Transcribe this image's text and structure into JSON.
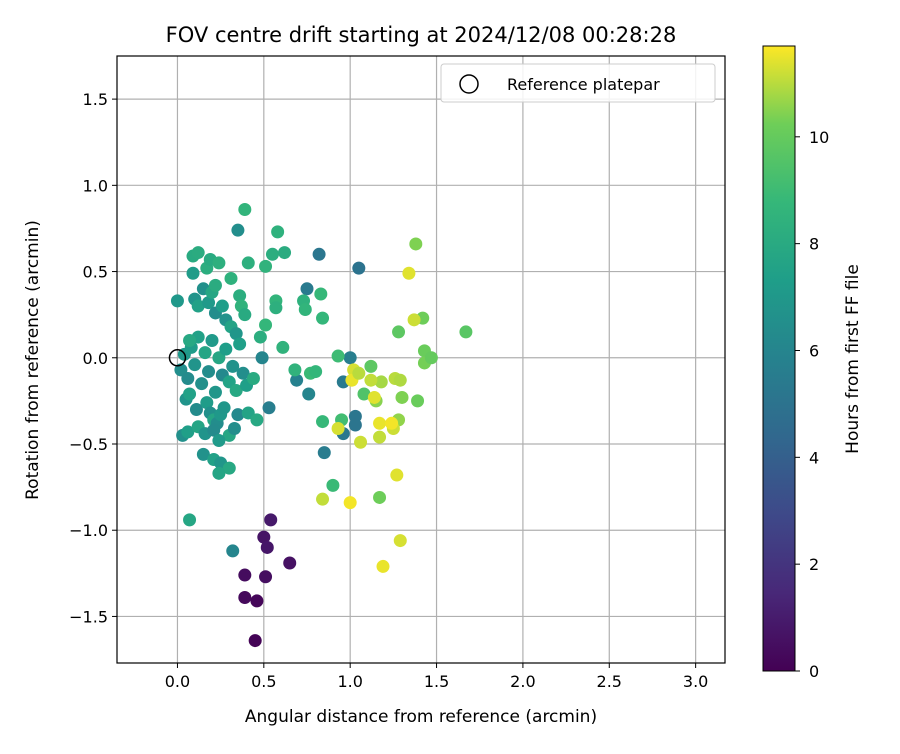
{
  "chart_data": {
    "type": "scatter",
    "title": "FOV centre drift starting at 2024/12/08 00:28:28",
    "xlabel": "Angular distance from reference (arcmin)",
    "ylabel": "Rotation from reference (arcmin)",
    "xlim": [
      -0.35,
      3.17
    ],
    "ylim": [
      -1.77,
      1.75
    ],
    "xticks": [
      0.0,
      0.5,
      1.0,
      1.5,
      2.0,
      2.5,
      3.0
    ],
    "xtick_labels": [
      "0.0",
      "0.5",
      "1.0",
      "1.5",
      "2.0",
      "2.5",
      "3.0"
    ],
    "yticks": [
      -1.5,
      -1.0,
      -0.5,
      0.0,
      0.5,
      1.0,
      1.5
    ],
    "ytick_labels": [
      "−1.5",
      "−1.0",
      "−0.5",
      "0.0",
      "0.5",
      "1.0",
      "1.5"
    ],
    "grid": true,
    "legend": {
      "position": "top-right",
      "entries": [
        "Reference platepar"
      ]
    },
    "reference_point": {
      "x": 0.0,
      "y": 0.0
    },
    "colorbar": {
      "label": "Hours from first FF file",
      "colormap": "viridis",
      "range": [
        0,
        11.7
      ],
      "ticks": [
        0,
        2,
        4,
        6,
        8,
        10
      ],
      "tick_labels": [
        "0",
        "2",
        "4",
        "6",
        "8",
        "10"
      ]
    },
    "points": [
      {
        "x": 0.45,
        "y": -1.64,
        "c": 0.1
      },
      {
        "x": 0.46,
        "y": -1.41,
        "c": 0.2
      },
      {
        "x": 0.39,
        "y": -1.39,
        "c": 0.3
      },
      {
        "x": 0.39,
        "y": -1.26,
        "c": 0.4
      },
      {
        "x": 0.51,
        "y": -1.27,
        "c": 0.5
      },
      {
        "x": 0.65,
        "y": -1.19,
        "c": 0.6
      },
      {
        "x": 0.5,
        "y": -1.04,
        "c": 0.7
      },
      {
        "x": 0.52,
        "y": -1.1,
        "c": 0.8
      },
      {
        "x": 0.54,
        "y": -0.94,
        "c": 0.9
      },
      {
        "x": 0.32,
        "y": -1.12,
        "c": 6.0
      },
      {
        "x": 0.07,
        "y": -0.94,
        "c": 7.8
      },
      {
        "x": 1.05,
        "y": 0.52,
        "c": 5.0
      },
      {
        "x": 0.82,
        "y": 0.6,
        "c": 5.2
      },
      {
        "x": 0.75,
        "y": 0.4,
        "c": 5.4
      },
      {
        "x": 0.53,
        "y": -0.29,
        "c": 5.6
      },
      {
        "x": 0.69,
        "y": -0.13,
        "c": 5.8
      },
      {
        "x": 0.76,
        "y": -0.21,
        "c": 6.0
      },
      {
        "x": 0.85,
        "y": -0.55,
        "c": 5.5
      },
      {
        "x": 0.96,
        "y": -0.44,
        "c": 5.3
      },
      {
        "x": 1.03,
        "y": -0.34,
        "c": 5.2
      },
      {
        "x": 1.03,
        "y": -0.39,
        "c": 5.1
      },
      {
        "x": 0.96,
        "y": -0.14,
        "c": 5.4
      },
      {
        "x": 1.0,
        "y": 0.0,
        "c": 5.6
      },
      {
        "x": 0.49,
        "y": 0.0,
        "c": 6.0
      },
      {
        "x": 0.35,
        "y": 0.74,
        "c": 6.5
      },
      {
        "x": 0.0,
        "y": 0.33,
        "c": 7.0
      },
      {
        "x": 0.09,
        "y": 0.49,
        "c": 7.2
      },
      {
        "x": 0.1,
        "y": 0.34,
        "c": 6.8
      },
      {
        "x": 0.12,
        "y": 0.3,
        "c": 7.5
      },
      {
        "x": 0.15,
        "y": 0.4,
        "c": 6.6
      },
      {
        "x": 0.18,
        "y": 0.32,
        "c": 7.1
      },
      {
        "x": 0.2,
        "y": 0.38,
        "c": 7.8
      },
      {
        "x": 0.22,
        "y": 0.26,
        "c": 6.4
      },
      {
        "x": 0.26,
        "y": 0.3,
        "c": 7.3
      },
      {
        "x": 0.28,
        "y": 0.22,
        "c": 6.7
      },
      {
        "x": 0.31,
        "y": 0.18,
        "c": 7.6
      },
      {
        "x": 0.34,
        "y": 0.14,
        "c": 6.9
      },
      {
        "x": 0.36,
        "y": 0.08,
        "c": 7.4
      },
      {
        "x": 0.02,
        "y": -0.07,
        "c": 6.5
      },
      {
        "x": 0.04,
        "y": 0.02,
        "c": 7.0
      },
      {
        "x": 0.06,
        "y": -0.12,
        "c": 6.3
      },
      {
        "x": 0.08,
        "y": 0.06,
        "c": 7.2
      },
      {
        "x": 0.1,
        "y": -0.04,
        "c": 6.8
      },
      {
        "x": 0.12,
        "y": 0.12,
        "c": 7.5
      },
      {
        "x": 0.14,
        "y": -0.15,
        "c": 6.6
      },
      {
        "x": 0.16,
        "y": 0.03,
        "c": 7.7
      },
      {
        "x": 0.18,
        "y": -0.08,
        "c": 6.4
      },
      {
        "x": 0.2,
        "y": 0.1,
        "c": 7.1
      },
      {
        "x": 0.22,
        "y": -0.2,
        "c": 6.9
      },
      {
        "x": 0.24,
        "y": 0.0,
        "c": 7.8
      },
      {
        "x": 0.26,
        "y": -0.1,
        "c": 6.2
      },
      {
        "x": 0.28,
        "y": 0.05,
        "c": 7.3
      },
      {
        "x": 0.3,
        "y": -0.14,
        "c": 7.6
      },
      {
        "x": 0.32,
        "y": -0.05,
        "c": 6.7
      },
      {
        "x": 0.34,
        "y": -0.19,
        "c": 7.9
      },
      {
        "x": 0.38,
        "y": -0.09,
        "c": 6.5
      },
      {
        "x": 0.4,
        "y": -0.16,
        "c": 7.4
      },
      {
        "x": 0.44,
        "y": -0.12,
        "c": 8.0
      },
      {
        "x": 0.05,
        "y": -0.24,
        "c": 6.8
      },
      {
        "x": 0.07,
        "y": -0.21,
        "c": 7.5
      },
      {
        "x": 0.11,
        "y": -0.3,
        "c": 6.3
      },
      {
        "x": 0.17,
        "y": -0.26,
        "c": 7.2
      },
      {
        "x": 0.19,
        "y": -0.32,
        "c": 6.6
      },
      {
        "x": 0.21,
        "y": -0.36,
        "c": 7.7
      },
      {
        "x": 0.23,
        "y": -0.38,
        "c": 6.4
      },
      {
        "x": 0.25,
        "y": -0.33,
        "c": 7.0
      },
      {
        "x": 0.27,
        "y": -0.29,
        "c": 6.9
      },
      {
        "x": 0.3,
        "y": -0.45,
        "c": 7.8
      },
      {
        "x": 0.33,
        "y": -0.41,
        "c": 6.5
      },
      {
        "x": 0.35,
        "y": -0.33,
        "c": 6.2
      },
      {
        "x": 0.41,
        "y": -0.32,
        "c": 7.6
      },
      {
        "x": 0.46,
        "y": -0.36,
        "c": 7.9
      },
      {
        "x": 0.03,
        "y": -0.45,
        "c": 6.6
      },
      {
        "x": 0.06,
        "y": -0.43,
        "c": 7.4
      },
      {
        "x": 0.12,
        "y": -0.4,
        "c": 7.7
      },
      {
        "x": 0.16,
        "y": -0.44,
        "c": 6.8
      },
      {
        "x": 0.21,
        "y": -0.42,
        "c": 6.3
      },
      {
        "x": 0.24,
        "y": -0.48,
        "c": 7.1
      },
      {
        "x": 0.15,
        "y": -0.56,
        "c": 6.7
      },
      {
        "x": 0.21,
        "y": -0.59,
        "c": 7.5
      },
      {
        "x": 0.25,
        "y": -0.61,
        "c": 6.9
      },
      {
        "x": 0.3,
        "y": -0.64,
        "c": 7.9
      },
      {
        "x": 0.24,
        "y": -0.67,
        "c": 7.7
      },
      {
        "x": 0.07,
        "y": 0.1,
        "c": 7.9
      },
      {
        "x": 0.09,
        "y": 0.59,
        "c": 8.0
      },
      {
        "x": 0.12,
        "y": 0.61,
        "c": 8.1
      },
      {
        "x": 0.17,
        "y": 0.52,
        "c": 8.2
      },
      {
        "x": 0.19,
        "y": 0.57,
        "c": 8.0
      },
      {
        "x": 0.24,
        "y": 0.55,
        "c": 8.3
      },
      {
        "x": 0.22,
        "y": 0.42,
        "c": 8.1
      },
      {
        "x": 0.31,
        "y": 0.46,
        "c": 8.4
      },
      {
        "x": 0.36,
        "y": 0.36,
        "c": 8.2
      },
      {
        "x": 0.37,
        "y": 0.3,
        "c": 8.5
      },
      {
        "x": 0.39,
        "y": 0.25,
        "c": 8.0
      },
      {
        "x": 0.39,
        "y": 0.86,
        "c": 8.6
      },
      {
        "x": 0.41,
        "y": 0.55,
        "c": 8.3
      },
      {
        "x": 0.51,
        "y": 0.53,
        "c": 8.5
      },
      {
        "x": 0.55,
        "y": 0.6,
        "c": 8.2
      },
      {
        "x": 0.58,
        "y": 0.73,
        "c": 8.4
      },
      {
        "x": 0.62,
        "y": 0.61,
        "c": 8.1
      },
      {
        "x": 0.57,
        "y": 0.33,
        "c": 8.6
      },
      {
        "x": 0.57,
        "y": 0.29,
        "c": 8.3
      },
      {
        "x": 0.51,
        "y": 0.19,
        "c": 8.7
      },
      {
        "x": 0.48,
        "y": 0.12,
        "c": 8.2
      },
      {
        "x": 0.61,
        "y": 0.06,
        "c": 8.5
      },
      {
        "x": 0.73,
        "y": 0.33,
        "c": 8.4
      },
      {
        "x": 0.74,
        "y": 0.28,
        "c": 8.6
      },
      {
        "x": 0.83,
        "y": 0.37,
        "c": 8.8
      },
      {
        "x": 0.84,
        "y": 0.23,
        "c": 8.7
      },
      {
        "x": 0.68,
        "y": -0.07,
        "c": 8.5
      },
      {
        "x": 0.77,
        "y": -0.09,
        "c": 8.9
      },
      {
        "x": 0.84,
        "y": -0.37,
        "c": 8.8
      },
      {
        "x": 0.93,
        "y": 0.01,
        "c": 9.0
      },
      {
        "x": 0.95,
        "y": -0.36,
        "c": 9.1
      },
      {
        "x": 0.9,
        "y": -0.74,
        "c": 8.9
      },
      {
        "x": 0.8,
        "y": -0.08,
        "c": 8.7
      },
      {
        "x": 1.08,
        "y": -0.21,
        "c": 9.5
      },
      {
        "x": 1.12,
        "y": -0.05,
        "c": 9.8
      },
      {
        "x": 1.28,
        "y": 0.15,
        "c": 9.8
      },
      {
        "x": 1.38,
        "y": 0.66,
        "c": 10.4
      },
      {
        "x": 1.42,
        "y": 0.23,
        "c": 10.2
      },
      {
        "x": 1.43,
        "y": 0.04,
        "c": 10.1
      },
      {
        "x": 1.43,
        "y": -0.03,
        "c": 10.3
      },
      {
        "x": 1.47,
        "y": 0.0,
        "c": 10.0
      },
      {
        "x": 1.67,
        "y": 0.15,
        "c": 9.7
      },
      {
        "x": 1.39,
        "y": -0.25,
        "c": 10.1
      },
      {
        "x": 1.3,
        "y": -0.23,
        "c": 10.4
      },
      {
        "x": 1.28,
        "y": -0.36,
        "c": 10.6
      },
      {
        "x": 1.17,
        "y": -0.81,
        "c": 10.2
      },
      {
        "x": 1.15,
        "y": -0.25,
        "c": 10.5
      },
      {
        "x": 1.18,
        "y": -0.14,
        "c": 10.8
      },
      {
        "x": 1.26,
        "y": -0.12,
        "c": 11.0
      },
      {
        "x": 1.29,
        "y": -0.13,
        "c": 10.9
      },
      {
        "x": 1.37,
        "y": 0.22,
        "c": 11.2
      },
      {
        "x": 1.34,
        "y": 0.49,
        "c": 11.4
      },
      {
        "x": 1.12,
        "y": -0.13,
        "c": 11.1
      },
      {
        "x": 1.02,
        "y": -0.07,
        "c": 11.3
      },
      {
        "x": 1.01,
        "y": -0.13,
        "c": 11.5
      },
      {
        "x": 1.05,
        "y": -0.09,
        "c": 11.0
      },
      {
        "x": 1.06,
        "y": -0.49,
        "c": 11.2
      },
      {
        "x": 0.93,
        "y": -0.41,
        "c": 11.3
      },
      {
        "x": 1.14,
        "y": -0.23,
        "c": 11.4
      },
      {
        "x": 1.17,
        "y": -0.46,
        "c": 11.1
      },
      {
        "x": 1.17,
        "y": -0.38,
        "c": 11.5
      },
      {
        "x": 1.25,
        "y": -0.41,
        "c": 11.2
      },
      {
        "x": 1.24,
        "y": -0.38,
        "c": 11.6
      },
      {
        "x": 1.27,
        "y": -0.68,
        "c": 11.4
      },
      {
        "x": 1.0,
        "y": -0.84,
        "c": 11.6
      },
      {
        "x": 0.84,
        "y": -0.82,
        "c": 11.1
      },
      {
        "x": 1.19,
        "y": -1.21,
        "c": 11.5
      },
      {
        "x": 1.29,
        "y": -1.06,
        "c": 11.3
      }
    ]
  }
}
